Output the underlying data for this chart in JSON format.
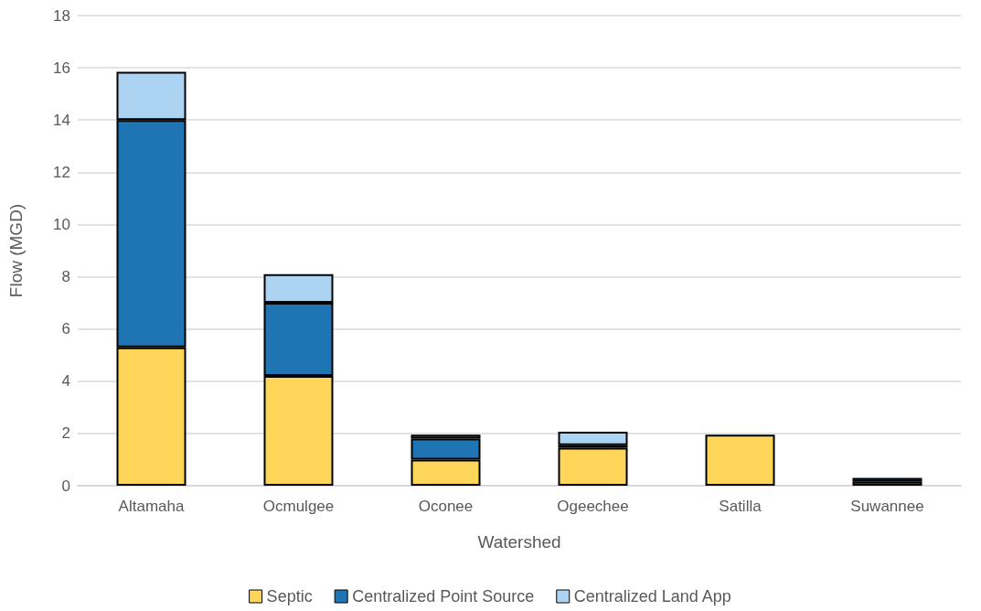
{
  "chart_data": {
    "type": "bar",
    "stacked": true,
    "xlabel": "Watershed",
    "ylabel": "Flow (MGD)",
    "categories": [
      "Altamaha",
      "Ocmulgee",
      "Oconee",
      "Ogeechee",
      "Satilla",
      "Suwannee"
    ],
    "series": [
      {
        "name": "Septic",
        "color": "#ffd55a",
        "values": [
          5.3,
          4.2,
          1.0,
          1.45,
          1.95,
          0.15
        ]
      },
      {
        "name": "Centralized Point Source",
        "color": "#1f74b4",
        "values": [
          8.7,
          2.8,
          0.8,
          0.1,
          null,
          0.15
        ]
      },
      {
        "name": "Centralized Land App",
        "color": "#acd3f2",
        "values": [
          1.85,
          1.1,
          0.15,
          0.52,
          null,
          null
        ]
      }
    ],
    "ylim": [
      0,
      18
    ],
    "yticks": [
      0,
      2,
      4,
      6,
      8,
      10,
      12,
      14,
      16,
      18
    ],
    "grid": "y",
    "legend": "bottom"
  }
}
